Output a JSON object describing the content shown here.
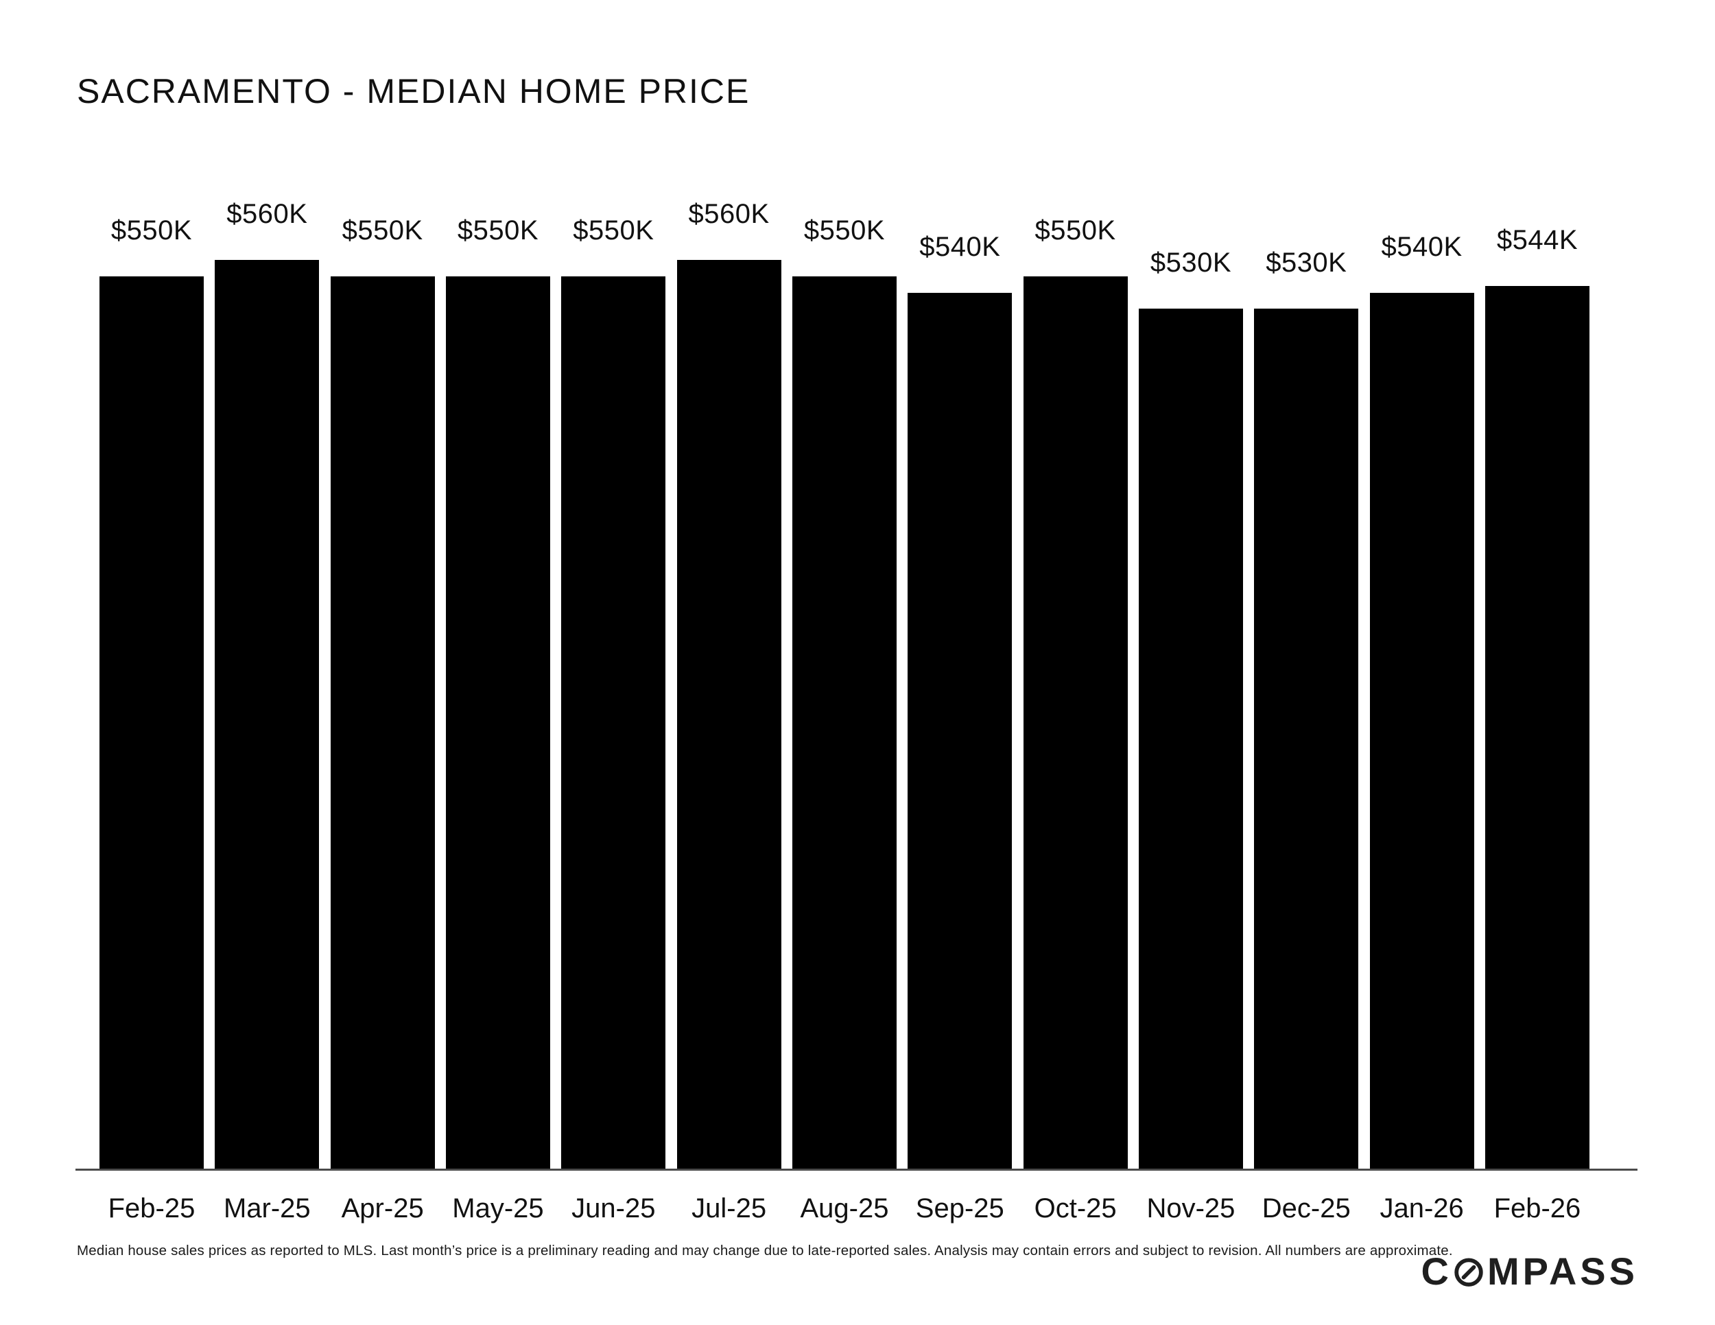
{
  "title": "SACRAMENTO - MEDIAN HOME PRICE",
  "chart_data": {
    "type": "bar",
    "title": "SACRAMENTO - MEDIAN HOME PRICE",
    "categories": [
      "Feb-25",
      "Mar-25",
      "Apr-25",
      "May-25",
      "Jun-25",
      "Jul-25",
      "Aug-25",
      "Sep-25",
      "Oct-25",
      "Nov-25",
      "Dec-25",
      "Jan-26",
      "Feb-26"
    ],
    "values": [
      550,
      560,
      550,
      550,
      550,
      560,
      550,
      540,
      550,
      530,
      530,
      540,
      544
    ],
    "value_labels": [
      "$550K",
      "$560K",
      "$550K",
      "$550K",
      "$550K",
      "$560K",
      "$550K",
      "$540K",
      "$550K",
      "$530K",
      "$530K",
      "$540K",
      "$544K"
    ],
    "xlabel": "",
    "ylabel": "",
    "ylim": [
      0,
      600
    ],
    "grid": false,
    "legend": "none",
    "bar_color": "#000000",
    "background_color": "#ffffff"
  },
  "footnote": "Median house sales prices as reported to MLS. Last month’s price is a preliminary reading and may change due to late-reported sales. Analysis may contain errors and subject to revision. All numbers are approximate.",
  "brand": {
    "name": "COMPASS",
    "prefix": "C",
    "suffix": "MPASS"
  },
  "colors": {
    "bar": "#000000",
    "text": "#111111",
    "axis_line": "#4b4b4b",
    "background": "#ffffff"
  }
}
